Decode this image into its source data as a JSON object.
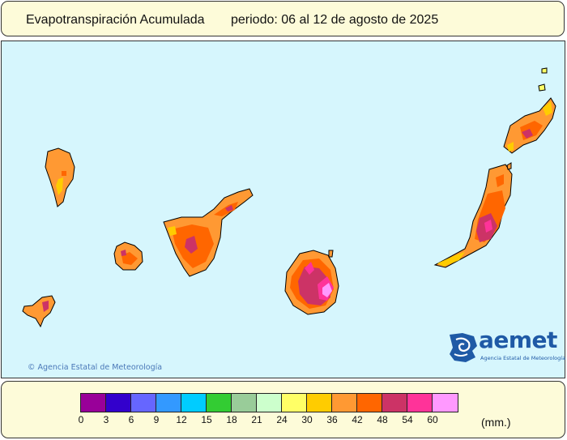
{
  "header": {
    "title": "Evapotranspiración Acumulada",
    "period": "periodo: 06 al 12 de agosto de 2025"
  },
  "map": {
    "copyright": "© Agencia Estatal de Meteorología",
    "logo": {
      "name": "aemet",
      "subtitle": "Agencia Estatal de Meteorología"
    },
    "islands": [
      "La Palma",
      "El Hierro",
      "La Gomera",
      "Tenerife",
      "Gran Canaria",
      "Fuerteventura",
      "Lanzarote",
      "La Graciosa",
      "Alegranza"
    ]
  },
  "legend": {
    "unit": "(mm.)",
    "ticks": [
      "0",
      "3",
      "6",
      "9",
      "12",
      "15",
      "18",
      "21",
      "24",
      "30",
      "36",
      "42",
      "48",
      "54",
      "60"
    ],
    "colors": [
      "#990099",
      "#3300cc",
      "#6666ff",
      "#3399ff",
      "#00ccff",
      "#33cc33",
      "#99cc99",
      "#ccffcc",
      "#ffff66",
      "#ffcc00",
      "#ff9933",
      "#ff6600",
      "#cc3366",
      "#ff3399",
      "#ff99ff"
    ]
  }
}
